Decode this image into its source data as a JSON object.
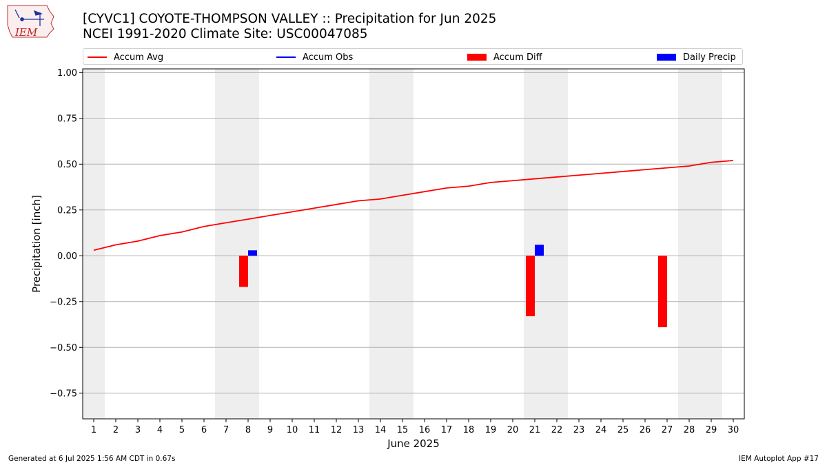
{
  "header": {
    "title_line1": "[CYVC1] COYOTE-THOMPSON VALLEY :: Precipitation for Jun 2025",
    "title_line2": "NCEI 1991-2020 Climate Site: USC00047085",
    "logo_text": "IEM"
  },
  "legend": {
    "items": [
      {
        "label": "Accum Avg",
        "color": "#ff0000",
        "kind": "line"
      },
      {
        "label": "Accum Obs",
        "color": "#0000ff",
        "kind": "line"
      },
      {
        "label": "Accum Diff",
        "color": "#ff0000",
        "kind": "box"
      },
      {
        "label": "Daily Precip",
        "color": "#0000ff",
        "kind": "box"
      }
    ]
  },
  "chart_data": {
    "type": "line+bar",
    "xlabel": "June 2025",
    "ylabel": "Precipitation [inch]",
    "ylim": [
      -0.89,
      1.02
    ],
    "yticks": [
      1.0,
      0.75,
      0.5,
      0.25,
      0.0,
      -0.25,
      -0.5,
      -0.75
    ],
    "ytick_labels": [
      "1.00",
      "0.75",
      "0.50",
      "0.25",
      "0.00",
      "−0.25",
      "−0.50",
      "−0.75"
    ],
    "xlim": [
      0.5,
      30.5
    ],
    "days": [
      1,
      2,
      3,
      4,
      5,
      6,
      7,
      8,
      9,
      10,
      11,
      12,
      13,
      14,
      15,
      16,
      17,
      18,
      19,
      20,
      21,
      22,
      23,
      24,
      25,
      26,
      27,
      28,
      29,
      30
    ],
    "weekend_spans": [
      [
        0.5,
        1.5
      ],
      [
        6.5,
        8.5
      ],
      [
        13.5,
        15.5
      ],
      [
        20.5,
        22.5
      ],
      [
        27.5,
        29.5
      ]
    ],
    "series": [
      {
        "name": "Accum Avg",
        "type": "line",
        "color": "#ff0000",
        "values": [
          0.03,
          0.06,
          0.08,
          0.11,
          0.13,
          0.16,
          0.18,
          0.2,
          0.22,
          0.24,
          0.26,
          0.28,
          0.3,
          0.31,
          0.33,
          0.35,
          0.37,
          0.38,
          0.4,
          0.41,
          0.42,
          0.43,
          0.44,
          0.45,
          0.46,
          0.47,
          0.48,
          0.49,
          0.51,
          0.52
        ]
      },
      {
        "name": "Accum Diff",
        "type": "bar",
        "color": "#ff0000",
        "points": [
          {
            "day": 8,
            "value": -0.17
          },
          {
            "day": 21,
            "value": -0.33
          },
          {
            "day": 27,
            "value": -0.39
          }
        ]
      },
      {
        "name": "Daily Precip",
        "type": "bar",
        "color": "#0000ff",
        "points": [
          {
            "day": 8,
            "value": 0.03
          },
          {
            "day": 21,
            "value": 0.06
          }
        ]
      }
    ]
  },
  "footer": {
    "left": "Generated at 6 Jul 2025 1:56 AM CDT in 0.67s",
    "right": "IEM Autoplot App #17"
  }
}
